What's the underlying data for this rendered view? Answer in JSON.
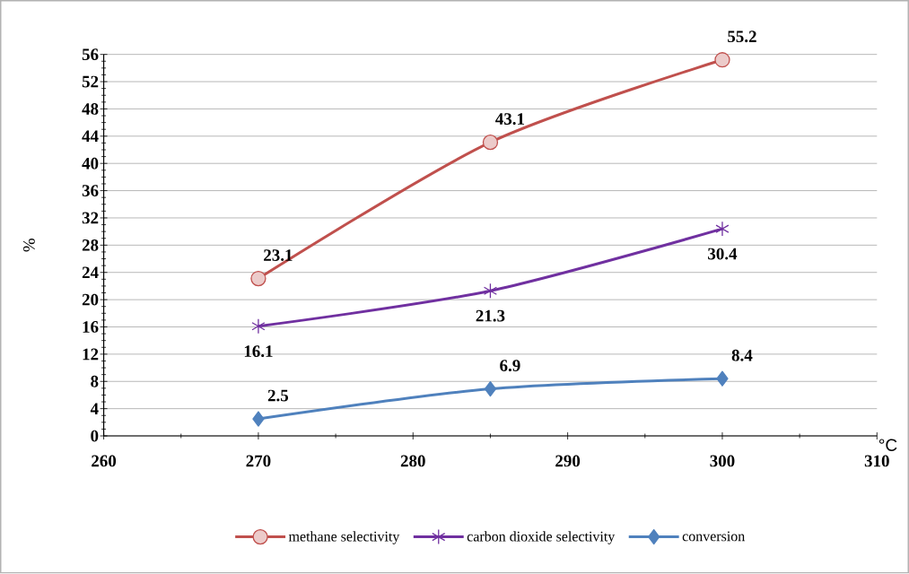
{
  "chart_data": {
    "type": "line",
    "xlabel": "°C",
    "ylabel": "%",
    "x": [
      270,
      285,
      300
    ],
    "series": [
      {
        "name": "methane selectivity",
        "color": "#c0504d",
        "marker": "circle",
        "values": [
          23.1,
          43.1,
          55.2
        ]
      },
      {
        "name": "carbon dioxide selectivity",
        "color": "#7030a0",
        "marker": "cross",
        "values": [
          16.1,
          21.3,
          30.4
        ]
      },
      {
        "name": "conversion",
        "color": "#4f81bd",
        "marker": "diamond",
        "values": [
          2.5,
          6.9,
          8.4
        ]
      }
    ],
    "xlim": [
      260,
      310
    ],
    "xticks": [
      260,
      270,
      280,
      290,
      300,
      310
    ],
    "ylim": [
      0,
      56
    ],
    "yticks": [
      0,
      4,
      8,
      12,
      16,
      20,
      24,
      28,
      32,
      36,
      40,
      44,
      48,
      52,
      56
    ],
    "grid": "y",
    "legend": "bottom",
    "data_labels": true,
    "line_style": "solid"
  }
}
